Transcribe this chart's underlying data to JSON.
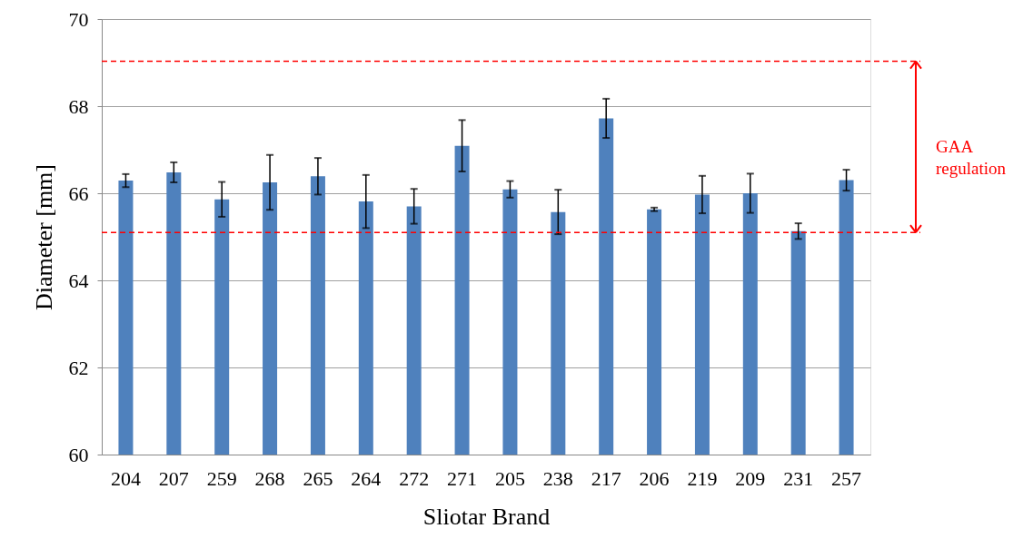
{
  "chart_data": {
    "type": "bar",
    "xlabel": "Sliotar Brand",
    "ylabel": "Diameter [mm]",
    "categories": [
      "204",
      "207",
      "259",
      "268",
      "265",
      "264",
      "272",
      "271",
      "205",
      "238",
      "217",
      "206",
      "219",
      "209",
      "231",
      "257"
    ],
    "values": [
      66.29,
      66.48,
      65.86,
      66.25,
      66.39,
      65.81,
      65.7,
      67.09,
      66.09,
      65.57,
      67.72,
      65.63,
      65.97,
      66.0,
      65.13,
      66.3
    ],
    "errors": [
      0.15,
      0.23,
      0.4,
      0.63,
      0.42,
      0.61,
      0.4,
      0.59,
      0.19,
      0.51,
      0.45,
      0.04,
      0.43,
      0.45,
      0.18,
      0.24
    ],
    "color": "#4f81bd",
    "ylim": [
      60,
      70
    ],
    "yticks": [
      60,
      62,
      64,
      66,
      68,
      70
    ],
    "grid": "y",
    "ref_lines": [
      {
        "axis": "y",
        "value": 69.03,
        "color": "#ff0000",
        "line_style": "dashed"
      },
      {
        "axis": "y",
        "value": 65.1,
        "color": "#ff0000",
        "line_style": "dashed"
      }
    ],
    "annotations": [
      "GAA regulation"
    ]
  }
}
